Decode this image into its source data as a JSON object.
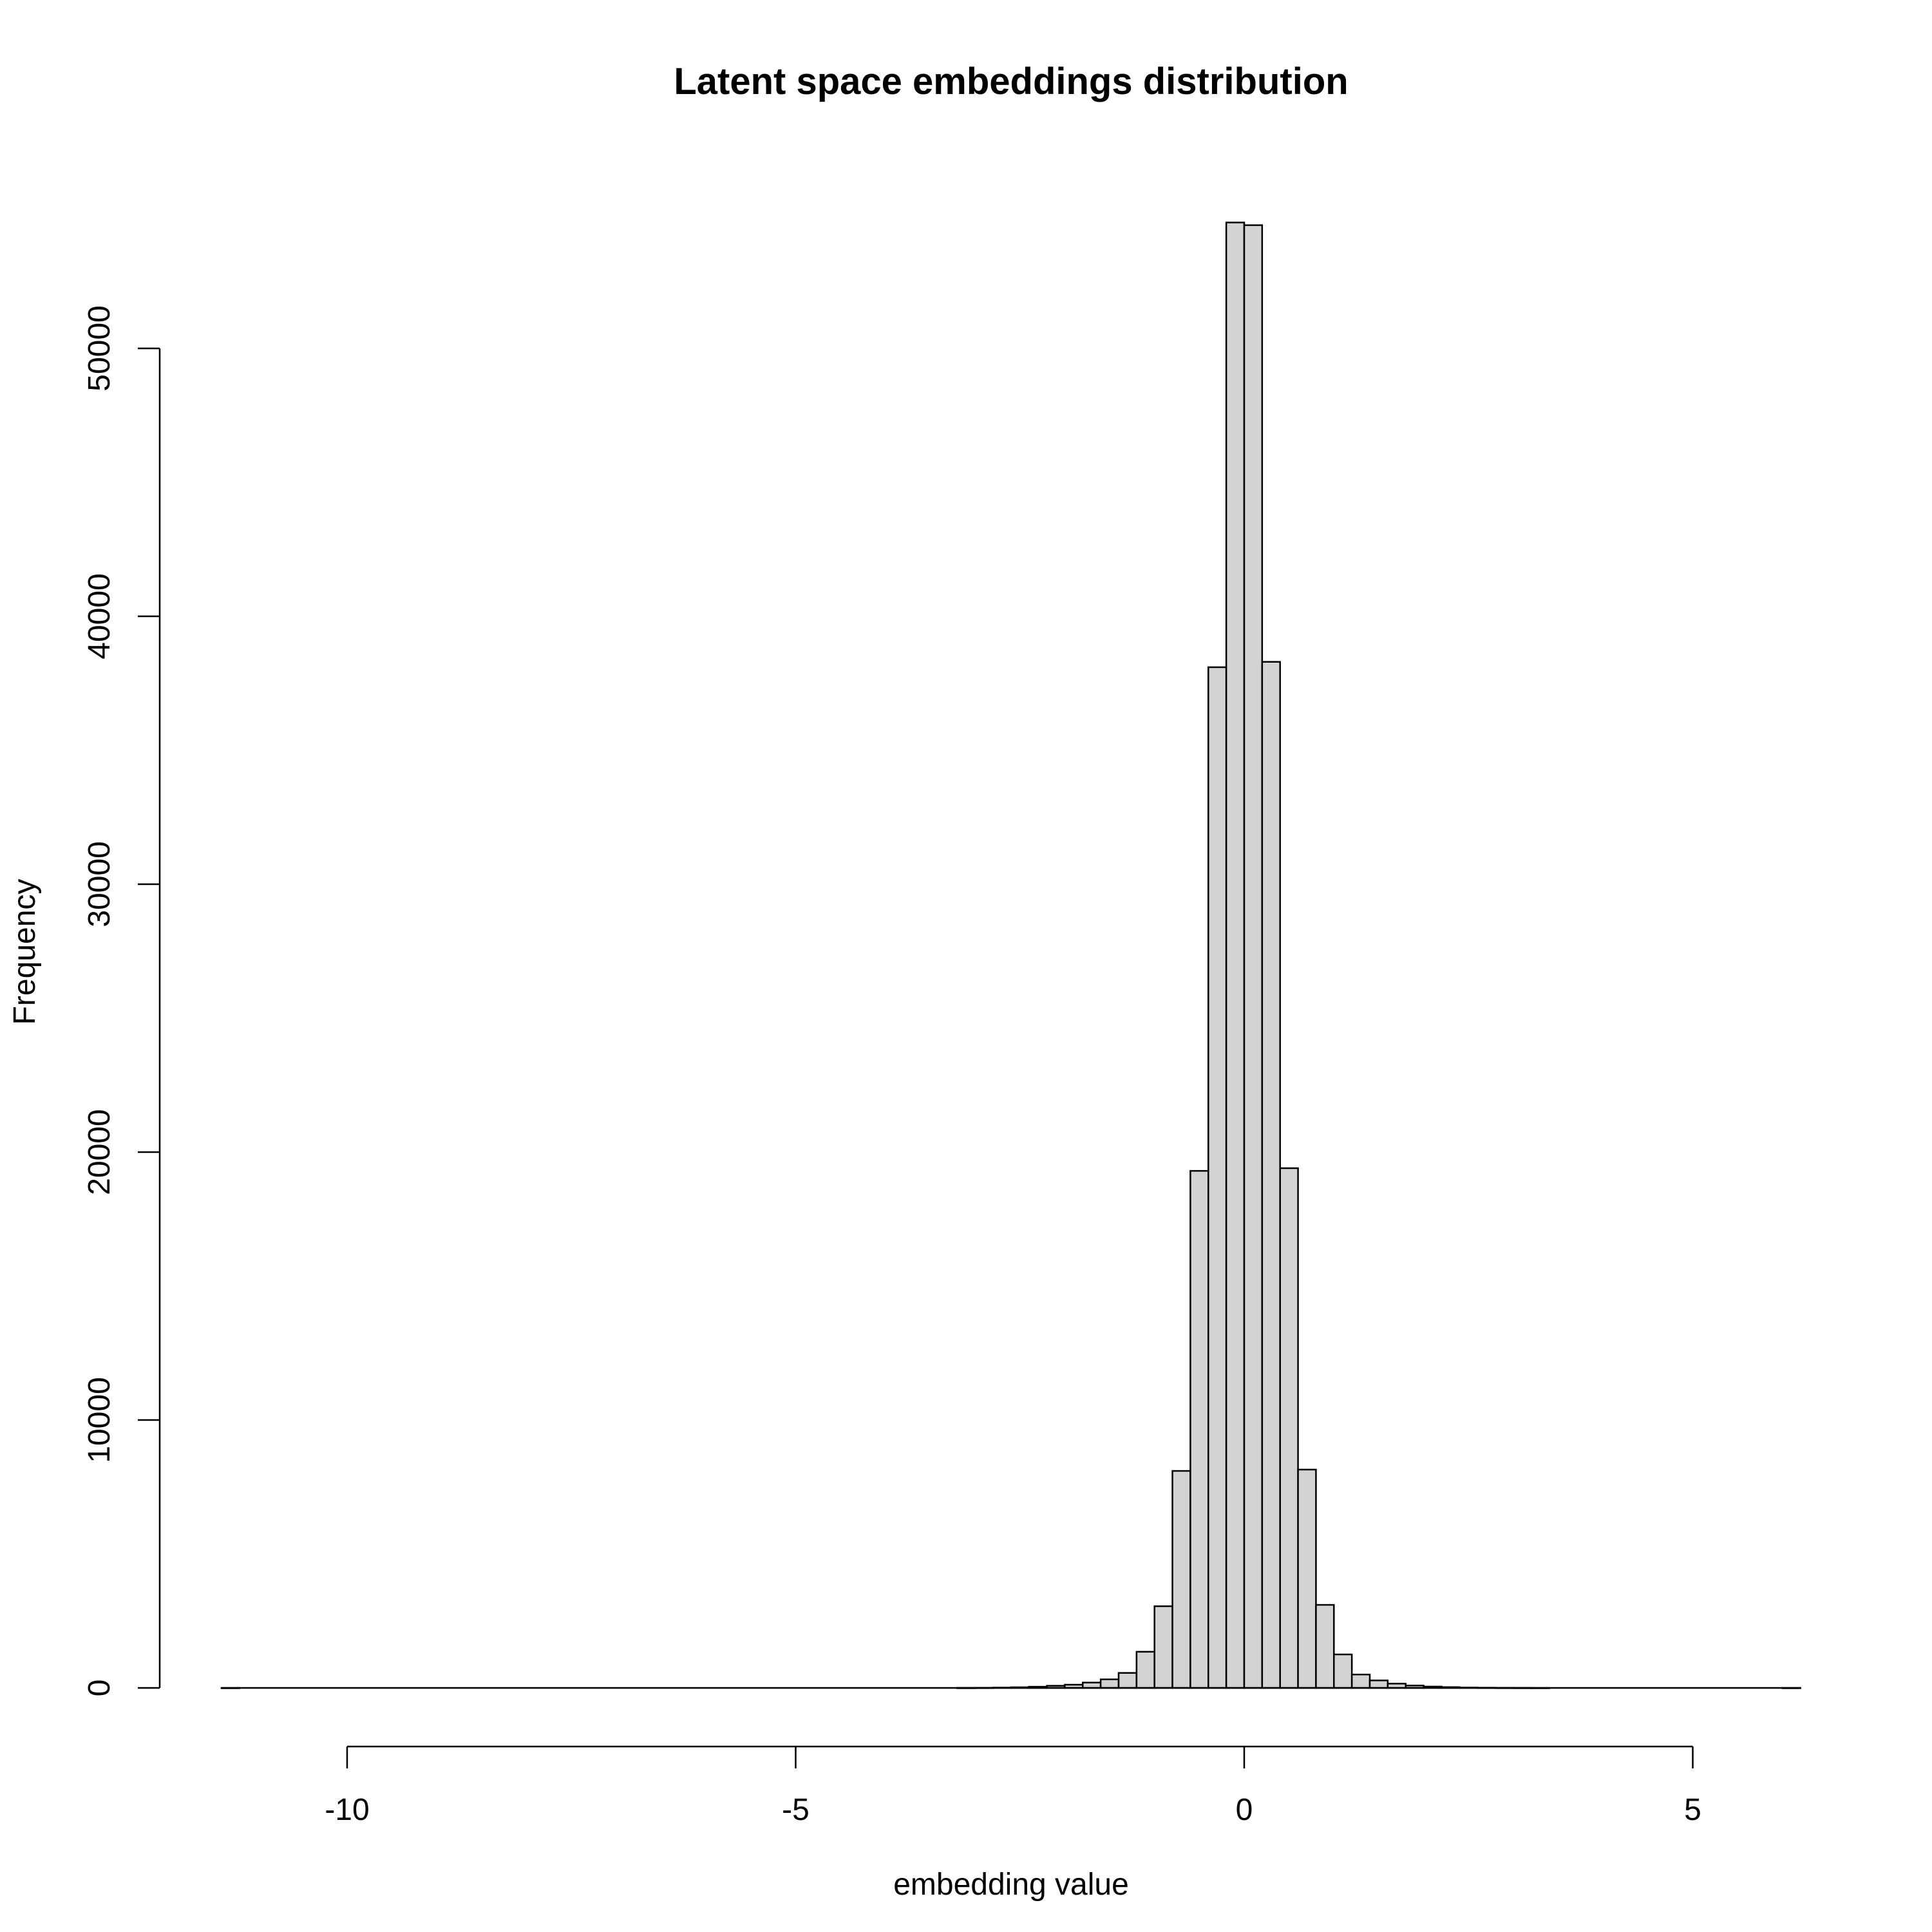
{
  "chart_data": {
    "type": "bar",
    "title": "Latent space embeddings distribution",
    "xlabel": "embedding value",
    "ylabel": "Frequency",
    "xlim": [
      -11.5,
      6.2
    ],
    "ylim": [
      0,
      55000
    ],
    "x_ticks": [
      -10,
      -5,
      0,
      5
    ],
    "x_tick_labels": [
      "-10",
      "-5",
      "0",
      "5"
    ],
    "y_ticks": [
      0,
      10000,
      20000,
      30000,
      40000,
      50000
    ],
    "y_tick_labels": [
      "0",
      "10000",
      "20000",
      "30000",
      "40000",
      "50000"
    ],
    "grid": false,
    "bin_width": 0.2,
    "bin_starts": [
      -11.4,
      -11.2,
      -11.0,
      -10.8,
      -10.6,
      -10.4,
      -10.2,
      -10.0,
      -9.8,
      -9.6,
      -9.4,
      -9.2,
      -9.0,
      -8.8,
      -8.6,
      -8.4,
      -8.2,
      -8.0,
      -7.8,
      -7.6,
      -7.4,
      -7.2,
      -7.0,
      -6.8,
      -6.6,
      -6.4,
      -6.2,
      -6.0,
      -5.8,
      -5.6,
      -5.4,
      -5.2,
      -5.0,
      -4.8,
      -4.6,
      -4.4,
      -4.2,
      -4.0,
      -3.8,
      -3.6,
      -3.4,
      -3.2,
      -3.0,
      -2.8,
      -2.6,
      -2.4,
      -2.2,
      -2.0,
      -1.8,
      -1.6,
      -1.4,
      -1.2,
      -1.0,
      -0.8,
      -0.6,
      -0.4,
      -0.2,
      0.0,
      0.2,
      0.4,
      0.6,
      0.8,
      1.0,
      1.2,
      1.4,
      1.6,
      1.8,
      2.0,
      2.2,
      2.4,
      2.6,
      2.8,
      3.0,
      3.2,
      3.4,
      3.6,
      3.8,
      4.0,
      4.2,
      4.4,
      4.6,
      4.8,
      5.0,
      5.2,
      5.4,
      5.6,
      5.8,
      6.0
    ],
    "values": [
      1,
      0,
      0,
      0,
      0,
      0,
      0,
      0,
      0,
      0,
      0,
      0,
      0,
      0,
      0,
      0,
      0,
      0,
      0,
      0,
      0,
      0,
      0,
      0,
      0,
      0,
      0,
      0,
      0,
      0,
      0,
      0,
      0,
      0,
      0,
      0,
      0,
      0,
      0,
      0,
      0,
      2,
      5,
      12,
      25,
      45,
      80,
      120,
      200,
      320,
      560,
      1350,
      3050,
      8100,
      19300,
      38100,
      54700,
      54600,
      38300,
      19400,
      8150,
      3100,
      1250,
      500,
      280,
      160,
      90,
      50,
      30,
      15,
      8,
      4,
      2,
      1,
      0,
      0,
      0,
      0,
      0,
      0,
      0,
      0,
      0,
      0,
      0,
      0,
      0,
      1
    ]
  }
}
